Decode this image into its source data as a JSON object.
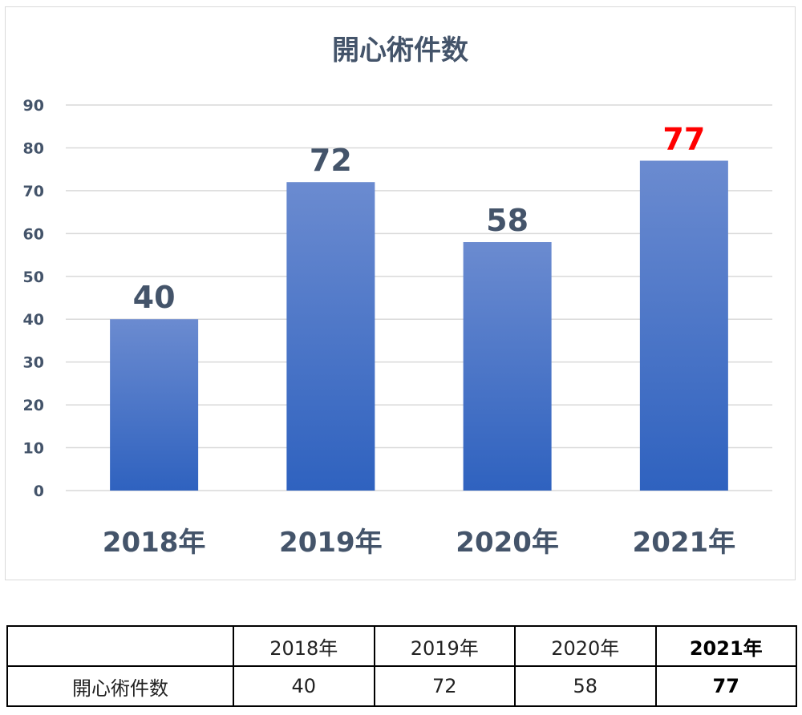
{
  "chart_data": {
    "type": "bar",
    "title": "開心術件数",
    "categories": [
      "2018年",
      "2019年",
      "2020年",
      "2021年"
    ],
    "values": [
      40,
      72,
      58,
      77
    ],
    "ylim": [
      0,
      90
    ],
    "yticks": [
      0,
      10,
      20,
      30,
      40,
      50,
      60,
      70,
      80,
      90
    ],
    "grid": true,
    "highlight_index": 3,
    "colors": {
      "bar_top": "#6b8bd0",
      "bar_bottom": "#2f62bf",
      "gridline": "#d9d9d9",
      "text": "#44546a",
      "highlight_label": "#ff0000"
    }
  },
  "table": {
    "header": [
      "",
      "2018年",
      "2019年",
      "2020年",
      "2021年"
    ],
    "row": [
      "開心術件数",
      "40",
      "72",
      "58",
      "77"
    ]
  }
}
